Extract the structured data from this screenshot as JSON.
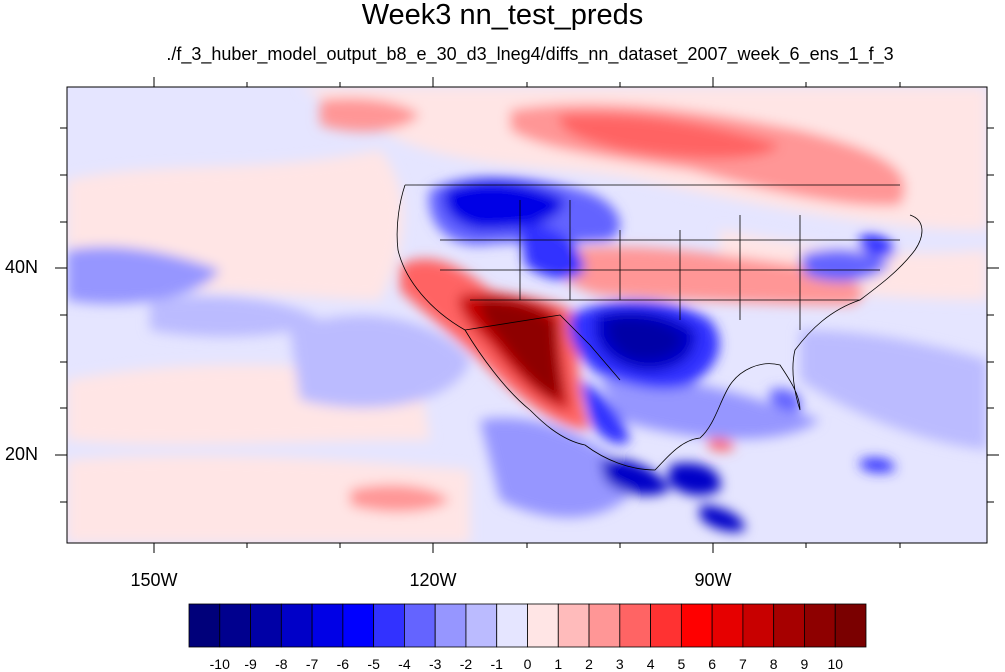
{
  "title": "Week3 nn_test_preds",
  "subtitle": "./f_3_huber_model_output_b8_e_30_d3_lneg4/diffs_nn_dataset_2007_week_6_ens_1_f_3",
  "map": {
    "lon_labels": [
      "150W",
      "120W",
      "90W"
    ],
    "lat_labels": [
      "40N",
      "20N"
    ],
    "extent": {
      "lon_min": -159.5,
      "lon_max": -61.5,
      "lat_min": 10.5,
      "lat_max": 59.5
    }
  },
  "colorbar": {
    "labels": [
      "-10",
      "-9",
      "-8",
      "-7",
      "-6",
      "-5",
      "-4",
      "-3",
      "-2",
      "-1",
      "0",
      "1",
      "2",
      "3",
      "4",
      "5",
      "6",
      "7",
      "8",
      "9",
      "10"
    ],
    "colors": [
      "#00007a",
      "#00008e",
      "#0000a6",
      "#0000c8",
      "#0000e6",
      "#0000ff",
      "#3232ff",
      "#6464ff",
      "#9696ff",
      "#bbbbff",
      "#e5e5ff",
      "#ffe5e5",
      "#ffbbbb",
      "#ff9696",
      "#ff6464",
      "#ff3232",
      "#ff0000",
      "#e60000",
      "#c80000",
      "#a60000",
      "#8e0000",
      "#7a0000"
    ]
  }
}
